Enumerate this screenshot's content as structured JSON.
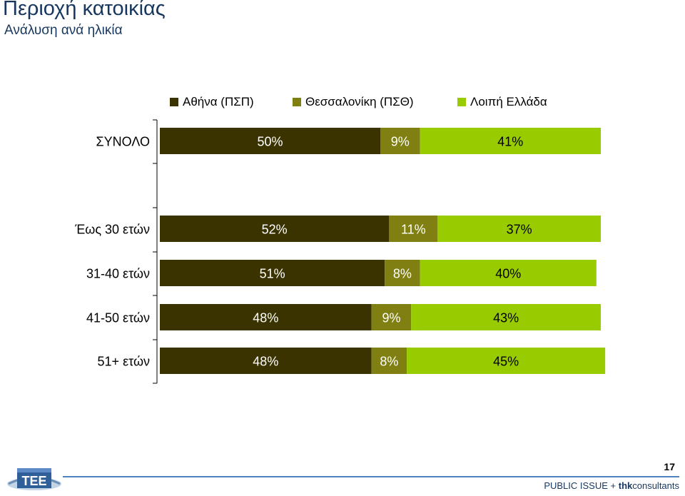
{
  "header": {
    "title": "Περιοχή κατοικίας",
    "subtitle": "Ανάλυση ανά ηλικία"
  },
  "colors": {
    "series": [
      "#3A3300",
      "#7F7F12",
      "#99CC00"
    ],
    "label_dark": "#ffffff",
    "label_light": "#000000",
    "title": "#17375E",
    "footer_line": "#4F81BD"
  },
  "chart_data": {
    "type": "bar",
    "orientation": "horizontal",
    "stacked": "percent",
    "categories": [
      "ΣΥΝΟΛΟ",
      "Έως 30 ετών",
      "31-40 ετών",
      "41-50 ετών",
      "51+ ετών"
    ],
    "series": [
      {
        "name": "Αθήνα (ΠΣΠ)",
        "values": [
          50,
          52,
          51,
          48,
          48
        ]
      },
      {
        "name": "Θεσσαλονίκη (ΠΣΘ)",
        "values": [
          9,
          11,
          8,
          9,
          8
        ]
      },
      {
        "name": "Λοιπή Ελλάδα",
        "values": [
          41,
          37,
          40,
          43,
          45
        ]
      }
    ],
    "value_suffix": "%",
    "legend_position": "top",
    "grid": false,
    "xlim": [
      0,
      100
    ]
  },
  "footer": {
    "page_number": "17",
    "brand_prefix": "PUBLIC ISSUE + ",
    "brand_bold": "thk",
    "brand_suffix": "consultants",
    "logo_text": "ΤΕΕ"
  }
}
